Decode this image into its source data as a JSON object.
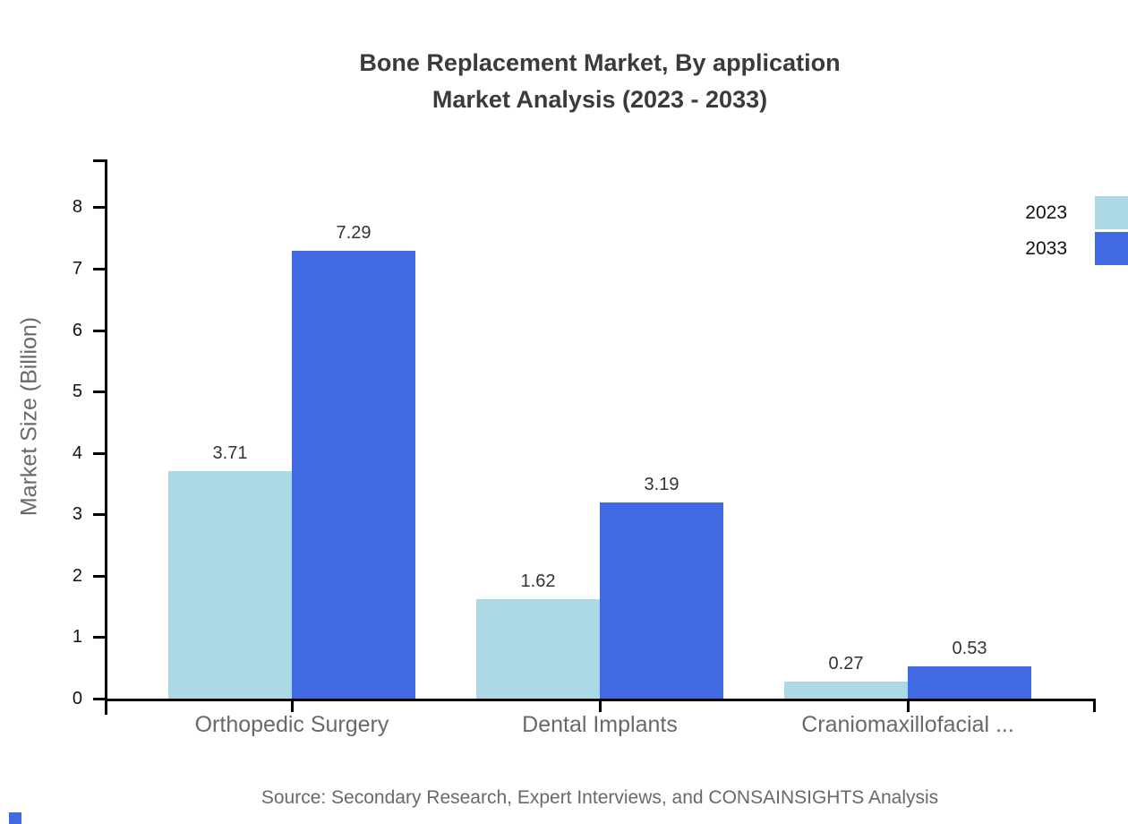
{
  "title": {
    "line1": "Bone Replacement Market, By application",
    "line2": "Market Analysis (2023 - 2033)"
  },
  "chart_data": {
    "type": "bar",
    "categories": [
      "Orthopedic Surgery",
      "Dental Implants",
      "Craniomaxillofacial ..."
    ],
    "series": [
      {
        "name": "2023",
        "color": "#ADD8E6",
        "values": [
          3.71,
          1.62,
          0.27
        ]
      },
      {
        "name": "2033",
        "color": "#4169E1",
        "values": [
          7.29,
          3.19,
          0.53
        ]
      }
    ],
    "ylabel": "Market Size (Billion)",
    "xlabel": "",
    "ylim": [
      0,
      8.8
    ],
    "yticks": [
      0,
      1,
      2,
      3,
      4,
      5,
      6,
      7,
      8
    ],
    "grid": false,
    "legend_position": "top-right",
    "value_labels": true
  },
  "colors": {
    "series_2023": "#ADD8E6",
    "series_2033": "#4169E1",
    "title_text": "#3b3b3b",
    "muted_text": "#696969",
    "axis": "#000000"
  },
  "source": "Source: Secondary Research, Expert Interviews, and CONSAINSIGHTS Analysis",
  "watermark": {
    "color": "#4169E1"
  }
}
